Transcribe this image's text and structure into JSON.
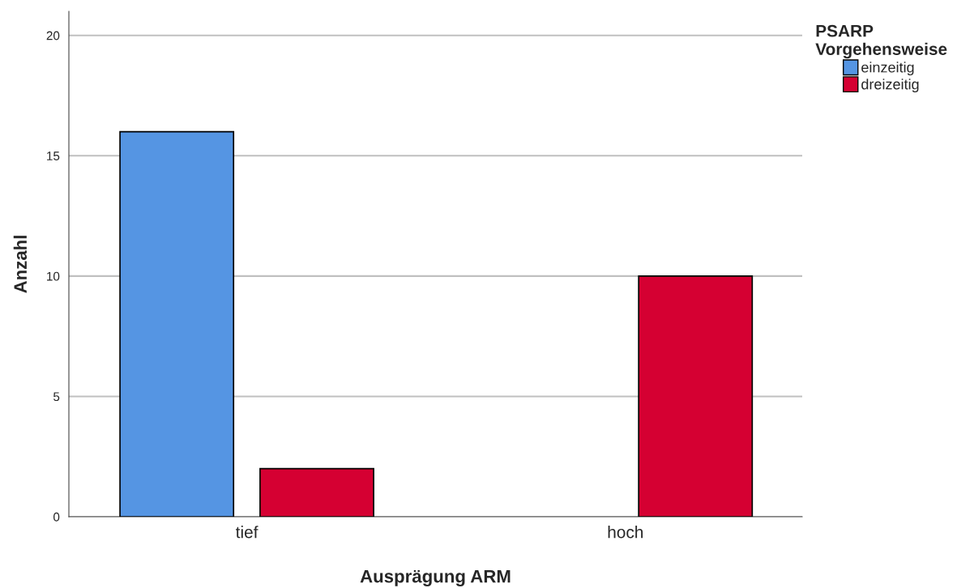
{
  "chart_data": {
    "type": "bar",
    "xlabel": "Ausprägung ARM",
    "ylabel": "Anzahl",
    "legend_title": "PSARP\nVorgehensweise",
    "categories": [
      "tief",
      "hoch"
    ],
    "series": [
      {
        "name": "einzeitig",
        "color": "#5595e3",
        "values": [
          16,
          null
        ]
      },
      {
        "name": "dreizeitig",
        "color": "#d50032",
        "values": [
          2,
          10
        ]
      }
    ],
    "ylim": [
      0,
      21
    ],
    "yticks": [
      0,
      5,
      10,
      15,
      20
    ],
    "grid": "y",
    "legend": "top right"
  }
}
